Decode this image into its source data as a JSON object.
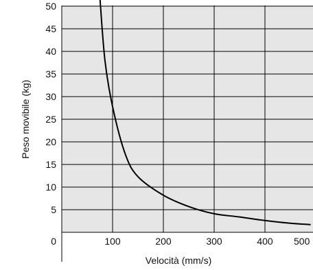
{
  "chart_data": {
    "type": "line",
    "title": "",
    "xlabel": "Velocità (mm/s)",
    "ylabel": "Peso movibile  (kg)",
    "xlim": [
      0,
      500
    ],
    "ylim": [
      0,
      50
    ],
    "x_ticks": [
      {
        "value": 0,
        "label": "0"
      },
      {
        "value": 100,
        "label": "100"
      },
      {
        "value": 200,
        "label": "200"
      },
      {
        "value": 300,
        "label": "300"
      },
      {
        "value": 400,
        "label": "400"
      },
      {
        "value": 500,
        "label": "500"
      }
    ],
    "y_ticks": [
      {
        "value": 5,
        "label": "5"
      },
      {
        "value": 10,
        "label": "10"
      },
      {
        "value": 15,
        "label": "15"
      },
      {
        "value": 20,
        "label": "20"
      },
      {
        "value": 25,
        "label": "25"
      },
      {
        "value": 30,
        "label": "30"
      },
      {
        "value": 35,
        "label": "35"
      },
      {
        "value": 40,
        "label": "40"
      },
      {
        "value": 45,
        "label": "45"
      },
      {
        "value": 50,
        "label": "50"
      }
    ],
    "grid": true,
    "series": [
      {
        "x": [
          75,
          85,
          100,
          125,
          150,
          200,
          250,
          300,
          350,
          400,
          450,
          490
        ],
        "y": [
          52,
          38,
          27.8,
          17.3,
          12.3,
          8.2,
          5.7,
          4.1,
          3.4,
          2.6,
          2.0,
          1.7
        ]
      }
    ]
  },
  "colors": {
    "background": "#ffffff",
    "plot_fill": "#e6e6e6",
    "grid": "#000000",
    "line": "#000000"
  }
}
